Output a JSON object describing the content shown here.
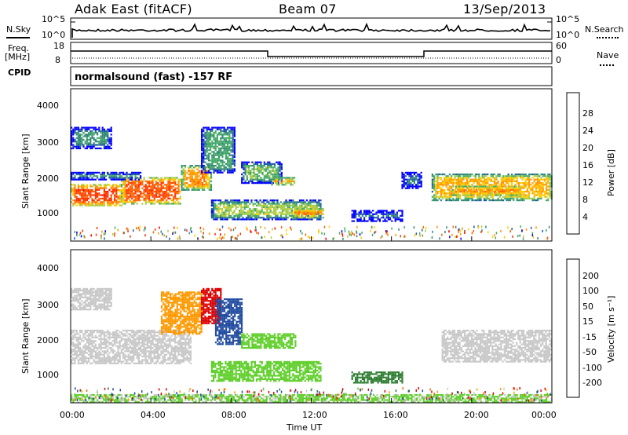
{
  "header": {
    "station": "Adak East (fitACF)",
    "beam": "Beam 07",
    "date": "13/Sep/2013"
  },
  "noise_panel": {
    "left_label": "N.Sky",
    "right_label": "N.Search",
    "left_ticks": [
      "10^5",
      "10^0"
    ],
    "right_ticks": [
      "10^5",
      "10^0"
    ]
  },
  "freq_panel": {
    "left_label_top": "Freq.",
    "left_label_unit": "[MHz]",
    "left_ticks": [
      "18",
      "8"
    ],
    "right_label": "Nave",
    "right_ticks": [
      "60",
      "0"
    ]
  },
  "cpid_panel": {
    "label": "CPID",
    "text": "normalsound (fast) -157 RF"
  },
  "power_panel": {
    "ylabel": "Slant Range [km]",
    "yticks": [
      "4000",
      "3000",
      "2000",
      "1000"
    ],
    "colorbar_label": "Power [dB]",
    "colorbar_ticks": [
      "28",
      "24",
      "20",
      "16",
      "12",
      "8",
      "4"
    ],
    "colorbar_colors": [
      "#ff0000",
      "#ff3300",
      "#ff6600",
      "#ff9900",
      "#ffcc00",
      "#aacc44",
      "#44aa66",
      "#338877",
      "#1e5aa8",
      "#0000ff"
    ]
  },
  "velocity_panel": {
    "ylabel": "Slant Range [km]",
    "yticks": [
      "4000",
      "3000",
      "2000",
      "1000"
    ],
    "colorbar_label": "Velocity [m s⁻¹]",
    "colorbar_ticks": [
      "200",
      "100",
      "50",
      "15",
      "-15",
      "-50",
      "-100",
      "-200"
    ],
    "colorbar_colors": [
      "#0000cc",
      "#1f4aa0",
      "#2e7d32",
      "#5fcf2a",
      "#c8c8c8",
      "#ff9900",
      "#ff6600",
      "#dd0000"
    ]
  },
  "x_axis": {
    "ticks": [
      "00:00",
      "04:00",
      "08:00",
      "12:00",
      "16:00",
      "20:00",
      "00:00"
    ],
    "label": "Time UT"
  },
  "chart_data": [
    {
      "type": "heatmap",
      "title": "Power",
      "xlabel": "Time UT",
      "ylabel": "Slant Range [km]",
      "xlim": [
        0,
        24
      ],
      "ylim": [
        200,
        4600
      ],
      "zlabel": "Power [dB]",
      "zlim": [
        0,
        32
      ],
      "bands": [
        {
          "t": [
            0.0,
            2.5
          ],
          "r": [
            1250,
            1850
          ],
          "z": 28
        },
        {
          "t": [
            2.5,
            5.5
          ],
          "r": [
            1300,
            2050
          ],
          "z": 26
        },
        {
          "t": [
            5.5,
            7.0
          ],
          "r": [
            1700,
            2400
          ],
          "z": 22
        },
        {
          "t": [
            0.0,
            3.5
          ],
          "r": [
            2000,
            2200
          ],
          "z": 12
        },
        {
          "t": [
            0.0,
            2.0
          ],
          "r": [
            2900,
            3500
          ],
          "z": 8
        },
        {
          "t": [
            6.5,
            8.2
          ],
          "r": [
            2200,
            3500
          ],
          "z": 10
        },
        {
          "t": [
            8.5,
            10.5
          ],
          "r": [
            1900,
            2500
          ],
          "z": 12
        },
        {
          "t": [
            10.0,
            11.2
          ],
          "r": [
            1850,
            2050
          ],
          "z": 24
        },
        {
          "t": [
            7.0,
            12.5
          ],
          "r": [
            850,
            1400
          ],
          "z": 14
        },
        {
          "t": [
            11.0,
            12.6
          ],
          "r": [
            900,
            1150
          ],
          "z": 26
        },
        {
          "t": [
            14.0,
            16.5
          ],
          "r": [
            800,
            1100
          ],
          "z": 6
        },
        {
          "t": [
            16.5,
            17.5
          ],
          "r": [
            1750,
            2200
          ],
          "z": 6
        },
        {
          "t": [
            18.0,
            24.0
          ],
          "r": [
            1400,
            2150
          ],
          "z": 20
        },
        {
          "t": [
            19.0,
            22.5
          ],
          "r": [
            1550,
            1800
          ],
          "z": 26
        }
      ]
    },
    {
      "type": "heatmap",
      "title": "Velocity",
      "xlabel": "Time UT",
      "ylabel": "Slant Range [km]",
      "xlim": [
        0,
        24
      ],
      "ylim": [
        200,
        4600
      ],
      "zlabel": "Velocity [m s⁻¹]",
      "zlim": [
        -250,
        250
      ],
      "bands": [
        {
          "t": [
            0.0,
            6.0
          ],
          "r": [
            1350,
            2300
          ],
          "z": 0
        },
        {
          "t": [
            0.0,
            2.0
          ],
          "r": [
            2900,
            3500
          ],
          "z": 0
        },
        {
          "t": [
            4.5,
            6.5
          ],
          "r": [
            2200,
            3400
          ],
          "z": -40
        },
        {
          "t": [
            6.5,
            7.5
          ],
          "r": [
            2500,
            3500
          ],
          "z": -180
        },
        {
          "t": [
            7.2,
            8.5
          ],
          "r": [
            1900,
            3200
          ],
          "z": 180
        },
        {
          "t": [
            8.5,
            11.2
          ],
          "r": [
            1800,
            2200
          ],
          "z": 40
        },
        {
          "t": [
            7.0,
            12.5
          ],
          "r": [
            850,
            1400
          ],
          "z": 35
        },
        {
          "t": [
            14.0,
            16.5
          ],
          "r": [
            800,
            1100
          ],
          "z": 60
        },
        {
          "t": [
            18.5,
            24.0
          ],
          "r": [
            1400,
            2300
          ],
          "z": 0
        },
        {
          "t": [
            0.0,
            24.0
          ],
          "r": [
            250,
            450
          ],
          "z": 20
        }
      ]
    }
  ]
}
